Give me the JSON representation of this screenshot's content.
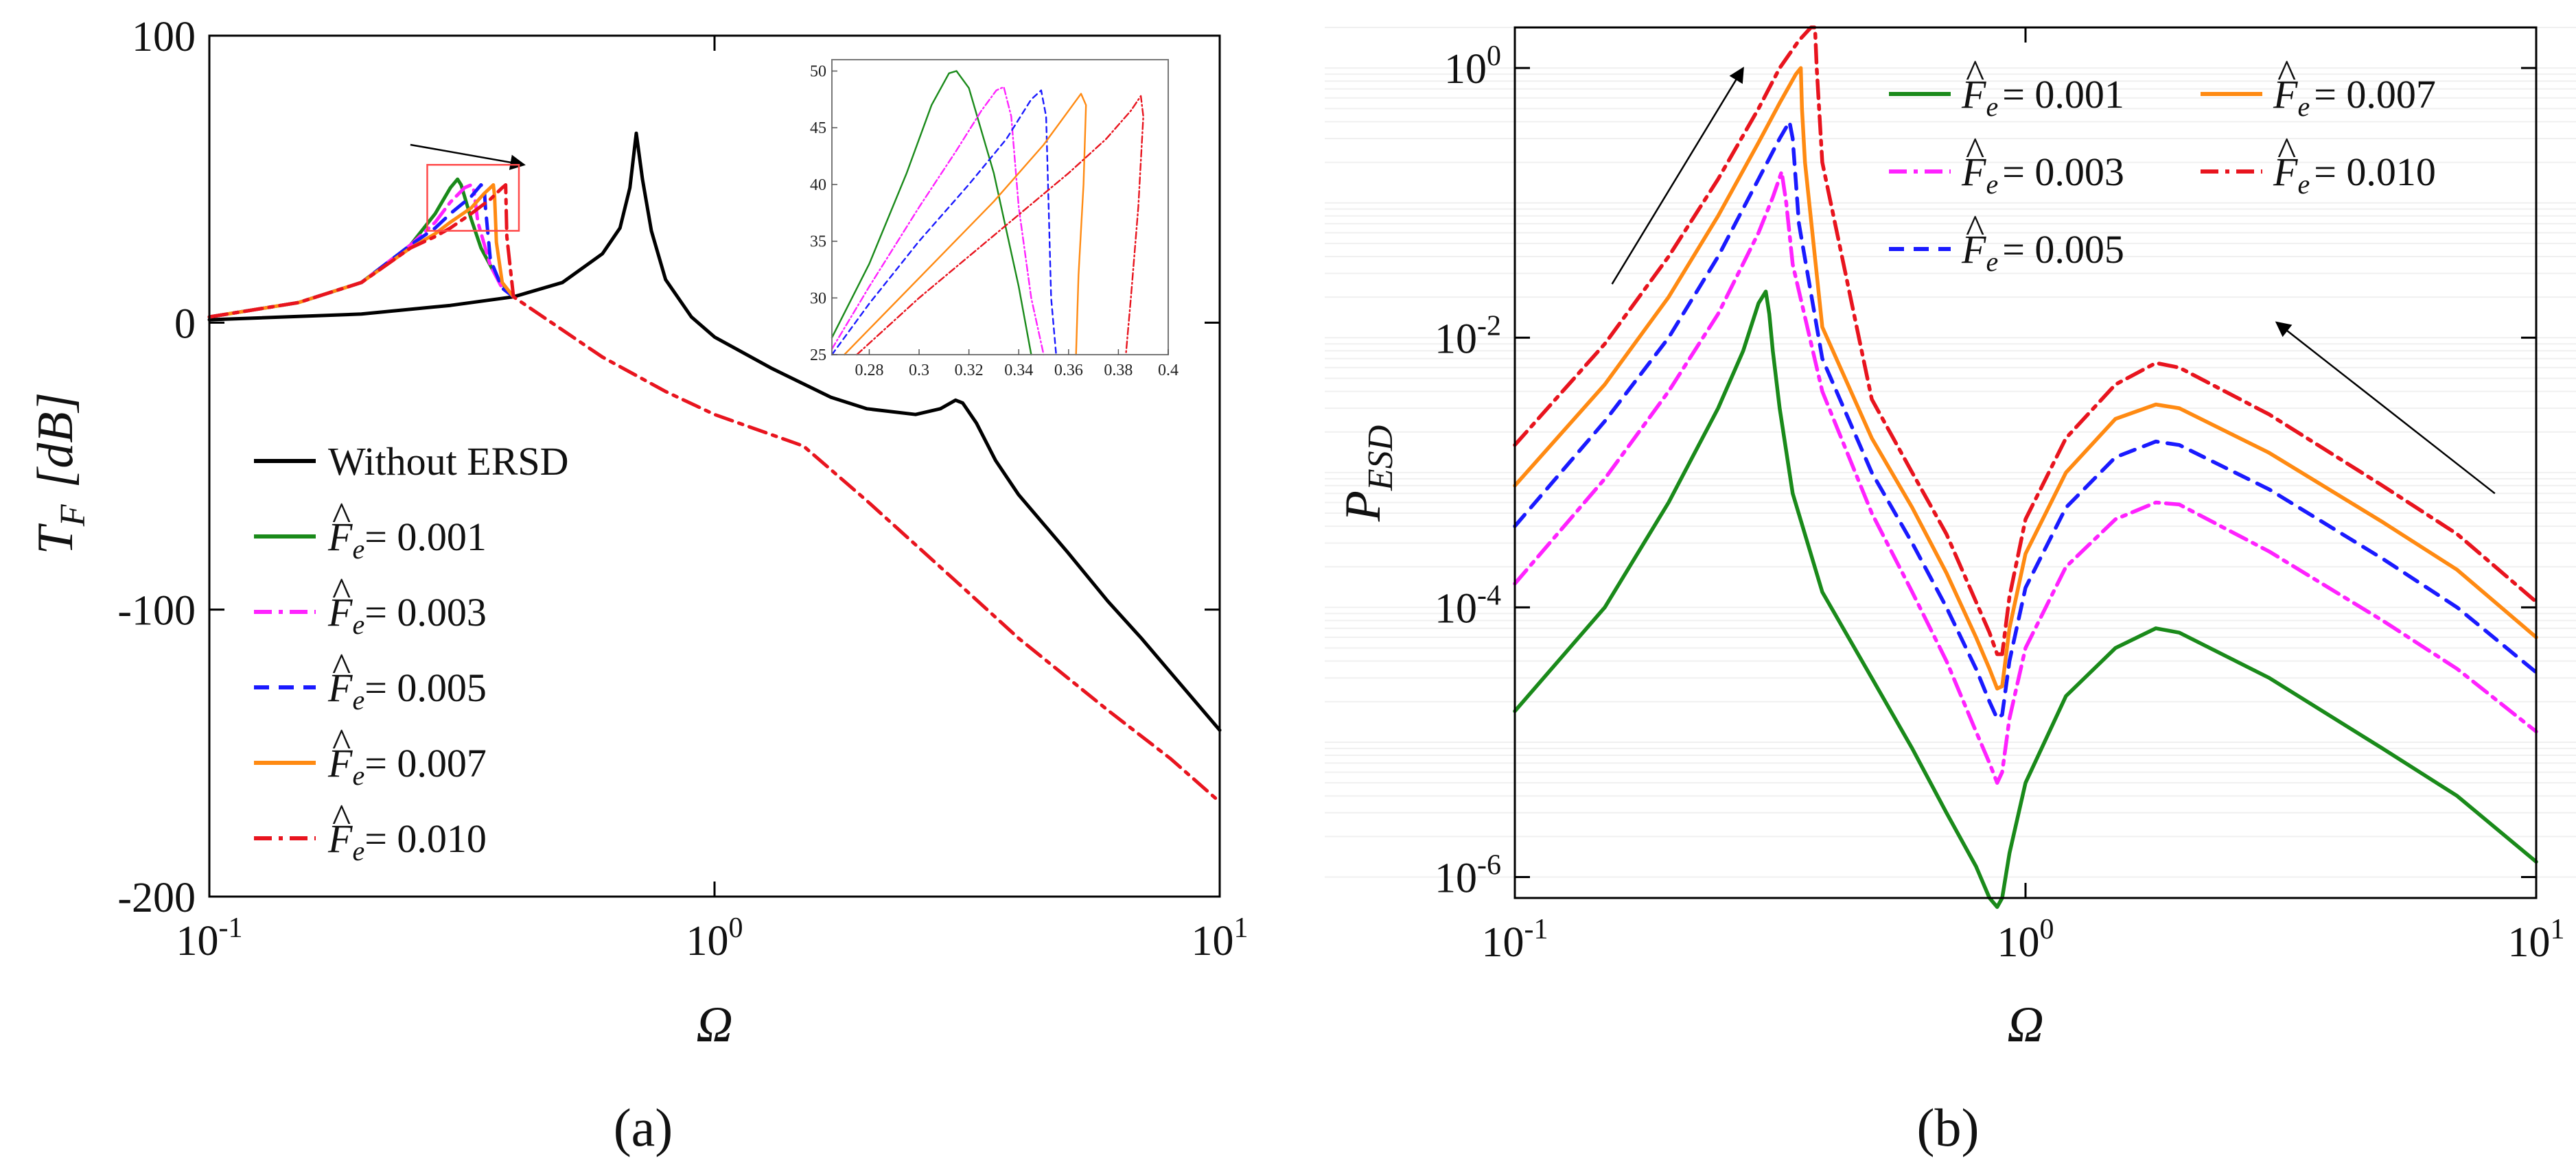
{
  "figure_labels": {
    "a": "(a)",
    "b": "(b)"
  },
  "legend_prefix": "F",
  "legend_sub": "e",
  "colors": {
    "black": "#000000",
    "green": "#1a8a1a",
    "magenta": "#ff22ff",
    "blue": "#1a1aff",
    "orange": "#ff8a12",
    "red": "#e8141e",
    "inset_box": "#ff4a4a"
  },
  "chart_data": [
    {
      "id": "a",
      "type": "line",
      "xscale": "log",
      "xlim": [
        0.1,
        10
      ],
      "ylim": [
        -200,
        100
      ],
      "xlabel": "Ω",
      "ylabel": "T_F [dB]",
      "ylabel_main": "T",
      "ylabel_sub": "F",
      "ylabel_unit": "[dB]",
      "xticks": [
        {
          "value": 0.1,
          "base": "10",
          "exp": "-1"
        },
        {
          "value": 1,
          "base": "10",
          "exp": "0"
        },
        {
          "value": 10,
          "base": "10",
          "exp": "1"
        }
      ],
      "yticks": [
        {
          "value": 100,
          "label": "100"
        },
        {
          "value": 0,
          "label": "0"
        },
        {
          "value": -100,
          "label": "-100"
        },
        {
          "value": -200,
          "label": "-200"
        }
      ],
      "legend_position": "bottom-left",
      "annotations": [
        {
          "type": "arrow",
          "note": "arrow pointing right over the resonance peaks",
          "from": [
            0.25,
            62
          ],
          "to": [
            0.42,
            55
          ]
        },
        {
          "type": "box",
          "note": "zoom box around peaks",
          "x": [
            0.27,
            0.41
          ],
          "y": [
            32,
            55
          ]
        }
      ],
      "series": [
        {
          "name": "Without ERSD",
          "label": "Without ERSD",
          "color_key": "black",
          "dash": "solid",
          "x": [
            0.1,
            0.2,
            0.3,
            0.4,
            0.5,
            0.6,
            0.65,
            0.68,
            0.7,
            0.72,
            0.75,
            0.8,
            0.9,
            1.0,
            1.3,
            1.7,
            2.0,
            2.5,
            2.8,
            3.0,
            3.1,
            3.3,
            3.6,
            4.0,
            5.0,
            6.0,
            7.0,
            8.0,
            10.0
          ],
          "y": [
            1,
            3,
            6,
            9,
            14,
            24,
            33,
            47,
            66,
            50,
            32,
            15,
            2,
            -5,
            -16,
            -26,
            -30,
            -32,
            -30,
            -27,
            -28,
            -35,
            -48,
            -60,
            -80,
            -97,
            -110,
            -122,
            -142
          ]
        },
        {
          "name": "F_e = 0.001",
          "label": "= 0.001",
          "color_key": "green",
          "dash": "solid",
          "x": [
            0.1,
            0.15,
            0.2,
            0.25,
            0.28,
            0.3,
            0.31,
            0.315,
            0.32,
            0.33,
            0.345,
            0.37,
            0.4
          ],
          "y": [
            2,
            7,
            14,
            27,
            38,
            47,
            50,
            48,
            44,
            36,
            26,
            16,
            9
          ]
        },
        {
          "name": "F_e = 0.003",
          "label": "= 0.003",
          "color_key": "magenta",
          "dash": "dashdot",
          "x": [
            0.1,
            0.15,
            0.2,
            0.25,
            0.28,
            0.3,
            0.32,
            0.33,
            0.334,
            0.34,
            0.36,
            0.38,
            0.4
          ],
          "y": [
            2,
            7,
            14,
            27,
            35,
            42,
            47,
            48,
            46,
            35,
            20,
            12,
            9
          ]
        },
        {
          "name": "F_e = 0.005",
          "label": "= 0.005",
          "color_key": "blue",
          "dash": "dashed",
          "x": [
            0.1,
            0.15,
            0.2,
            0.25,
            0.28,
            0.3,
            0.33,
            0.345,
            0.35,
            0.352,
            0.36,
            0.38,
            0.4
          ],
          "y": [
            2,
            7,
            14,
            27,
            33,
            38,
            44,
            48,
            47,
            40,
            22,
            12,
            9
          ]
        },
        {
          "name": "F_e = 0.007",
          "label": "= 0.007",
          "color_key": "orange",
          "dash": "solid",
          "x": [
            0.1,
            0.15,
            0.2,
            0.25,
            0.28,
            0.3,
            0.33,
            0.35,
            0.365,
            0.367,
            0.37,
            0.38,
            0.4
          ],
          "y": [
            2,
            7,
            14,
            26,
            31,
            35,
            40,
            45,
            48,
            44,
            28,
            14,
            9
          ]
        },
        {
          "name": "F_e = 0.010",
          "label": "= 0.010",
          "color_key": "red",
          "dash": "dashdot",
          "x": [
            0.1,
            0.15,
            0.2,
            0.25,
            0.28,
            0.3,
            0.33,
            0.36,
            0.38,
            0.386,
            0.388,
            0.4,
            0.6,
            0.8,
            1.0,
            1.5,
            2.0,
            3.0,
            4.0,
            6.0,
            8.0,
            10.0
          ],
          "y": [
            2,
            7,
            14,
            26,
            30,
            33,
            38,
            43,
            47,
            48,
            30,
            9,
            -12,
            -24,
            -32,
            -43,
            -62,
            -90,
            -110,
            -135,
            -152,
            -167
          ]
        }
      ],
      "inset": {
        "xlim": [
          0.265,
          0.4
        ],
        "ylim": [
          25,
          51
        ],
        "xticks": [
          {
            "value": 0.28,
            "label": "0.28"
          },
          {
            "value": 0.3,
            "label": "0.3"
          },
          {
            "value": 0.32,
            "label": "0.32"
          },
          {
            "value": 0.34,
            "label": "0.34"
          },
          {
            "value": 0.36,
            "label": "0.36"
          },
          {
            "value": 0.38,
            "label": "0.38"
          },
          {
            "value": 0.4,
            "label": "0.4"
          }
        ],
        "yticks": [
          {
            "value": 25,
            "label": "25"
          },
          {
            "value": 30,
            "label": "30"
          },
          {
            "value": 35,
            "label": "35"
          },
          {
            "value": 40,
            "label": "40"
          },
          {
            "value": 45,
            "label": "45"
          },
          {
            "value": 50,
            "label": "50"
          }
        ],
        "series": [
          {
            "name": "F_e = 0.001",
            "color_key": "green",
            "dash": "solid",
            "x": [
              0.265,
              0.28,
              0.295,
              0.305,
              0.312,
              0.315,
              0.32,
              0.33,
              0.34,
              0.345
            ],
            "y": [
              26.5,
              33,
              41,
              47,
              49.8,
              50,
              48.5,
              41,
              31,
              25
            ]
          },
          {
            "name": "F_e = 0.003",
            "color_key": "magenta",
            "dash": "dashdot",
            "x": [
              0.265,
              0.28,
              0.3,
              0.315,
              0.325,
              0.331,
              0.334,
              0.337,
              0.34,
              0.345,
              0.35
            ],
            "y": [
              25.5,
              31,
              38,
              43,
              46.5,
              48.3,
              48.6,
              46,
              38,
              30,
              25
            ]
          },
          {
            "name": "F_e = 0.005",
            "color_key": "blue",
            "dash": "dashed",
            "x": [
              0.265,
              0.28,
              0.3,
              0.32,
              0.335,
              0.345,
              0.349,
              0.351,
              0.352,
              0.353,
              0.355
            ],
            "y": [
              25,
              29.5,
              35,
              40,
              44,
              47.5,
              48.3,
              46,
              38,
              30,
              25
            ]
          },
          {
            "name": "F_e = 0.007",
            "color_key": "orange",
            "dash": "solid",
            "x": [
              0.27,
              0.29,
              0.31,
              0.33,
              0.35,
              0.36,
              0.365,
              0.367,
              0.366,
              0.364,
              0.363
            ],
            "y": [
              25,
              29.5,
              34,
              38.5,
              43.5,
              46.5,
              48,
              47,
              40,
              32,
              25
            ]
          },
          {
            "name": "F_e = 0.010",
            "color_key": "red",
            "dash": "dashdot",
            "x": [
              0.275,
              0.3,
              0.33,
              0.36,
              0.375,
              0.385,
              0.389,
              0.39,
              0.388,
              0.385,
              0.383
            ],
            "y": [
              25,
              30,
              35.5,
              41,
              44,
              46.5,
              47.8,
              46,
              38,
              30,
              25
            ]
          }
        ]
      }
    },
    {
      "id": "b",
      "type": "line",
      "xscale": "log",
      "yscale": "log",
      "xlim": [
        0.1,
        10
      ],
      "ylim": [
        7e-07,
        2
      ],
      "xlabel": "Ω",
      "ylabel": "P_ESD",
      "ylabel_main": "P",
      "ylabel_sub": "ESD",
      "xticks": [
        {
          "value": 0.1,
          "base": "10",
          "exp": "-1"
        },
        {
          "value": 1,
          "base": "10",
          "exp": "0"
        },
        {
          "value": 10,
          "base": "10",
          "exp": "1"
        }
      ],
      "yticks": [
        {
          "value": 1,
          "base": "10",
          "exp": "0"
        },
        {
          "value": 0.01,
          "base": "10",
          "exp": "-2"
        },
        {
          "value": 0.0001,
          "base": "10",
          "exp": "-4"
        },
        {
          "value": 1e-06,
          "base": "10",
          "exp": "-6"
        }
      ],
      "legend_position": "top-right",
      "annotations": [
        {
          "type": "arrow",
          "note": "arrow up toward resonance",
          "from": [
            0.155,
            0.025
          ],
          "to": [
            0.28,
            1.0
          ]
        },
        {
          "type": "arrow",
          "note": "arrow left from high frequency",
          "from": [
            8.3,
            0.0007
          ],
          "to": [
            3.1,
            0.013
          ]
        }
      ],
      "series": [
        {
          "name": "F_e = 0.001",
          "label": "= 0.001",
          "color_key": "green",
          "dash": "solid",
          "x": [
            0.1,
            0.15,
            0.2,
            0.25,
            0.28,
            0.3,
            0.31,
            0.315,
            0.32,
            0.33,
            0.35,
            0.4,
            0.5,
            0.6,
            0.7,
            0.8,
            0.85,
            0.88,
            0.9,
            0.93,
            1.0,
            1.2,
            1.5,
            1.8,
            2.0,
            3.0,
            5.0,
            7.0,
            10.0
          ],
          "y": [
            1.7e-05,
            0.0001,
            0.0006,
            0.003,
            0.008,
            0.018,
            0.022,
            0.015,
            0.008,
            0.003,
            0.0007,
            0.00013,
            3e-05,
            9e-06,
            3e-06,
            1.2e-06,
            7e-07,
            6e-07,
            7e-07,
            1.5e-06,
            5e-06,
            2.2e-05,
            5e-05,
            7e-05,
            6.5e-05,
            3e-05,
            9e-06,
            4e-06,
            1.3e-06
          ]
        },
        {
          "name": "F_e = 0.003",
          "label": "= 0.003",
          "color_key": "magenta",
          "dash": "dashdot",
          "x": [
            0.1,
            0.15,
            0.2,
            0.25,
            0.3,
            0.32,
            0.333,
            0.34,
            0.35,
            0.4,
            0.5,
            0.6,
            0.7,
            0.8,
            0.85,
            0.88,
            0.9,
            0.93,
            1.0,
            1.2,
            1.5,
            1.8,
            2.0,
            3.0,
            5.0,
            7.0,
            10.0
          ],
          "y": [
            0.00015,
            0.0009,
            0.004,
            0.015,
            0.06,
            0.11,
            0.17,
            0.1,
            0.035,
            0.004,
            0.0005,
            0.00013,
            4e-05,
            1.2e-05,
            7e-06,
            5e-06,
            6e-06,
            1.5e-05,
            5e-05,
            0.0002,
            0.00045,
            0.0006,
            0.00058,
            0.00026,
            8e-05,
            3.5e-05,
            1.2e-05
          ]
        },
        {
          "name": "F_e = 0.005",
          "label": "= 0.005",
          "color_key": "blue",
          "dash": "dashed",
          "x": [
            0.1,
            0.15,
            0.2,
            0.25,
            0.3,
            0.33,
            0.345,
            0.35,
            0.36,
            0.4,
            0.5,
            0.6,
            0.7,
            0.8,
            0.85,
            0.88,
            0.9,
            0.93,
            1.0,
            1.2,
            1.5,
            1.8,
            2.0,
            3.0,
            5.0,
            7.0,
            10.0
          ],
          "y": [
            0.0004,
            0.0024,
            0.01,
            0.04,
            0.15,
            0.3,
            0.4,
            0.3,
            0.07,
            0.007,
            0.001,
            0.0003,
            0.0001,
            3.5e-05,
            2e-05,
            1.5e-05,
            1.6e-05,
            4e-05,
            0.00014,
            0.00055,
            0.0013,
            0.0017,
            0.0016,
            0.00075,
            0.00023,
            0.0001,
            3.3e-05
          ]
        },
        {
          "name": "F_e = 0.007",
          "label": "= 0.007",
          "color_key": "orange",
          "dash": "solid",
          "x": [
            0.1,
            0.15,
            0.2,
            0.25,
            0.3,
            0.33,
            0.355,
            0.363,
            0.365,
            0.37,
            0.4,
            0.5,
            0.6,
            0.7,
            0.8,
            0.85,
            0.88,
            0.9,
            0.93,
            1.0,
            1.2,
            1.5,
            1.8,
            2.0,
            3.0,
            5.0,
            7.0,
            10.0
          ],
          "y": [
            0.0008,
            0.0045,
            0.02,
            0.08,
            0.28,
            0.55,
            0.9,
            1.0,
            0.5,
            0.2,
            0.012,
            0.0018,
            0.00055,
            0.00018,
            6e-05,
            3.5e-05,
            2.5e-05,
            2.6e-05,
            7e-05,
            0.00025,
            0.001,
            0.0025,
            0.0032,
            0.003,
            0.0014,
            0.00043,
            0.00019,
            6e-05
          ]
        },
        {
          "name": "F_e = 0.010",
          "label": "= 0.010",
          "color_key": "red",
          "dash": "dashdot",
          "x": [
            0.1,
            0.15,
            0.2,
            0.25,
            0.3,
            0.33,
            0.36,
            0.38,
            0.387,
            0.39,
            0.4,
            0.5,
            0.6,
            0.7,
            0.8,
            0.85,
            0.88,
            0.9,
            0.93,
            1.0,
            1.2,
            1.5,
            1.8,
            2.0,
            3.0,
            5.0,
            7.0,
            10.0
          ],
          "y": [
            0.0016,
            0.009,
            0.04,
            0.15,
            0.5,
            1.0,
            1.6,
            2.0,
            2.0,
            1.0,
            0.2,
            0.0035,
            0.001,
            0.00035,
            0.00011,
            6.5e-05,
            4.5e-05,
            4.5e-05,
            0.00012,
            0.00045,
            0.0018,
            0.0045,
            0.0065,
            0.006,
            0.0027,
            0.0008,
            0.00035,
            0.00011
          ]
        }
      ]
    }
  ]
}
